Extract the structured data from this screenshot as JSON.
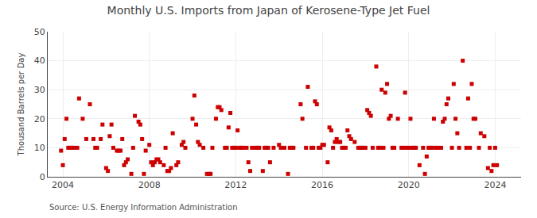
{
  "chart_data": {
    "type": "scatter",
    "title": "Monthly U.S. Imports from Japan of Kerosene-Type Jet Fuel",
    "ylabel": "Thousand Barrels per Day",
    "annotations": [
      "Source: U.S. Energy Information Administration"
    ],
    "color": "#cc0000",
    "marker": "square",
    "grid": true,
    "ylim": [
      0,
      50
    ],
    "yticks": [
      0,
      10,
      20,
      30,
      40,
      50
    ],
    "xlim": [
      2003.3,
      2025.2
    ],
    "xticks": [
      2004,
      2008,
      2012,
      2016,
      2020,
      2024
    ],
    "x": [
      2003.917,
      2004.0,
      2004.083,
      2004.167,
      2004.25,
      2004.333,
      2004.417,
      2004.5,
      2004.667,
      2004.75,
      2004.917,
      2005.083,
      2005.25,
      2005.417,
      2005.5,
      2005.583,
      2005.75,
      2005.833,
      2006.0,
      2006.083,
      2006.167,
      2006.25,
      2006.333,
      2006.5,
      2006.583,
      2006.667,
      2006.75,
      2006.833,
      2006.917,
      2007.0,
      2007.167,
      2007.25,
      2007.333,
      2007.5,
      2007.583,
      2007.667,
      2007.75,
      2007.833,
      2008.0,
      2008.083,
      2008.167,
      2008.25,
      2008.333,
      2008.417,
      2008.5,
      2008.667,
      2008.75,
      2008.833,
      2008.917,
      2009.0,
      2009.083,
      2009.25,
      2009.333,
      2009.5,
      2009.583,
      2009.667,
      2010.0,
      2010.083,
      2010.167,
      2010.25,
      2010.333,
      2010.5,
      2010.667,
      2010.75,
      2010.833,
      2010.917,
      2011.083,
      2011.167,
      2011.25,
      2011.333,
      2011.5,
      2011.583,
      2011.667,
      2011.75,
      2011.833,
      2011.917,
      2012.0,
      2012.083,
      2012.167,
      2012.25,
      2012.333,
      2012.5,
      2012.583,
      2012.667,
      2012.75,
      2012.917,
      2013.0,
      2013.083,
      2013.25,
      2013.333,
      2013.417,
      2013.5,
      2013.583,
      2013.75,
      2014.0,
      2014.083,
      2014.25,
      2014.417,
      2014.5,
      2014.583,
      2014.667,
      2015.0,
      2015.083,
      2015.25,
      2015.333,
      2015.5,
      2015.583,
      2015.667,
      2015.75,
      2015.833,
      2015.917,
      2016.0,
      2016.083,
      2016.25,
      2016.333,
      2016.417,
      2016.5,
      2016.583,
      2016.667,
      2016.75,
      2016.833,
      2016.917,
      2017.0,
      2017.083,
      2017.167,
      2017.25,
      2017.333,
      2017.5,
      2017.667,
      2017.75,
      2017.833,
      2017.917,
      2018.0,
      2018.083,
      2018.167,
      2018.25,
      2018.333,
      2018.5,
      2018.583,
      2018.667,
      2018.75,
      2018.833,
      2018.917,
      2019.0,
      2019.083,
      2019.167,
      2019.25,
      2019.333,
      2019.5,
      2019.667,
      2019.75,
      2019.833,
      2019.917,
      2020.0,
      2020.083,
      2020.167,
      2020.25,
      2020.333,
      2020.5,
      2020.667,
      2020.75,
      2020.833,
      2020.917,
      2021.0,
      2021.083,
      2021.167,
      2021.25,
      2021.333,
      2021.5,
      2021.583,
      2021.667,
      2021.75,
      2021.833,
      2022.0,
      2022.083,
      2022.167,
      2022.25,
      2022.333,
      2022.5,
      2022.667,
      2022.75,
      2022.833,
      2022.917,
      2023.0,
      2023.083,
      2023.25,
      2023.333,
      2023.5,
      2023.667,
      2023.75,
      2023.833,
      2023.917,
      2024.0,
      2024.083
    ],
    "values": [
      9,
      4,
      13,
      20,
      10,
      10,
      10,
      10,
      10,
      27,
      20,
      13,
      25,
      13,
      10,
      10,
      13,
      18,
      3,
      2,
      14,
      18,
      10,
      9,
      9,
      9,
      13,
      4,
      5,
      6,
      1,
      10,
      21,
      19,
      18,
      13,
      1,
      9,
      11,
      5,
      4,
      5,
      6,
      6,
      5,
      4,
      10,
      2,
      2,
      3,
      15,
      4,
      5,
      11,
      12,
      10,
      20,
      28,
      18,
      12,
      11,
      10,
      1,
      1,
      1,
      10,
      20,
      24,
      24,
      23,
      10,
      10,
      17,
      22,
      10,
      10,
      10,
      16,
      10,
      10,
      10,
      10,
      5,
      2,
      10,
      10,
      10,
      10,
      2,
      10,
      10,
      10,
      5,
      10,
      11,
      10,
      10,
      1,
      10,
      10,
      10,
      25,
      20,
      10,
      31,
      10,
      10,
      26,
      25,
      10,
      10,
      11,
      11,
      5,
      17,
      16,
      10,
      12,
      13,
      12,
      12,
      10,
      10,
      10,
      16,
      14,
      13,
      12,
      10,
      10,
      10,
      10,
      10,
      23,
      22,
      21,
      10,
      38,
      10,
      10,
      30,
      10,
      29,
      32,
      20,
      21,
      10,
      10,
      20,
      10,
      10,
      29,
      10,
      10,
      20,
      10,
      10,
      10,
      4,
      10,
      1,
      7,
      10,
      10,
      10,
      20,
      10,
      10,
      10,
      19,
      20,
      25,
      27,
      10,
      32,
      20,
      15,
      10,
      40,
      10,
      27,
      10,
      32,
      20,
      20,
      10,
      15,
      14,
      3,
      10,
      2,
      4,
      10,
      4
    ]
  }
}
